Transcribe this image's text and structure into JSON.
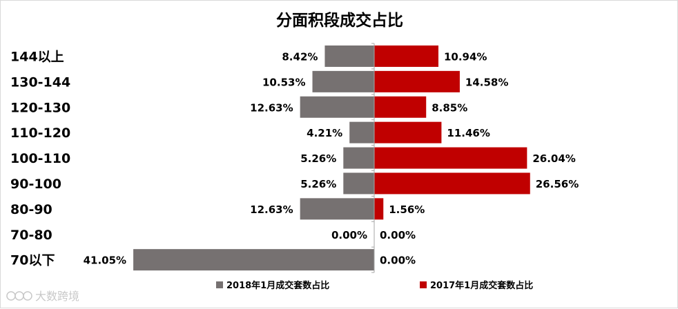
{
  "chart_data": {
    "type": "bar",
    "orientation": "horizontal-diverging",
    "title": "分面积段成交占比",
    "categories": [
      "144以上",
      "130-144",
      "120-130",
      "110-120",
      "100-110",
      "90-100",
      "80-90",
      "70-80",
      "70以下"
    ],
    "series": [
      {
        "name": "2018年1月成交套数占比",
        "color": "#767171",
        "direction": "left",
        "values": [
          8.42,
          10.53,
          12.63,
          4.21,
          5.26,
          5.26,
          12.63,
          0.0,
          41.05
        ],
        "labels": [
          "8.42%",
          "10.53%",
          "12.63%",
          "4.21%",
          "5.26%",
          "5.26%",
          "12.63%",
          "0.00%",
          "41.05%"
        ]
      },
      {
        "name": "2017年1月成交套数占比",
        "color": "#c00000",
        "direction": "right",
        "values": [
          10.94,
          14.58,
          8.85,
          11.46,
          26.04,
          26.56,
          1.56,
          0.0,
          0.0
        ],
        "labels": [
          "10.94%",
          "14.58%",
          "8.85%",
          "11.46%",
          "26.04%",
          "26.56%",
          "1.56%",
          "0.00%",
          "0.00%"
        ]
      }
    ],
    "legend_position": "bottom",
    "grid": false
  },
  "watermark": "大数跨境"
}
